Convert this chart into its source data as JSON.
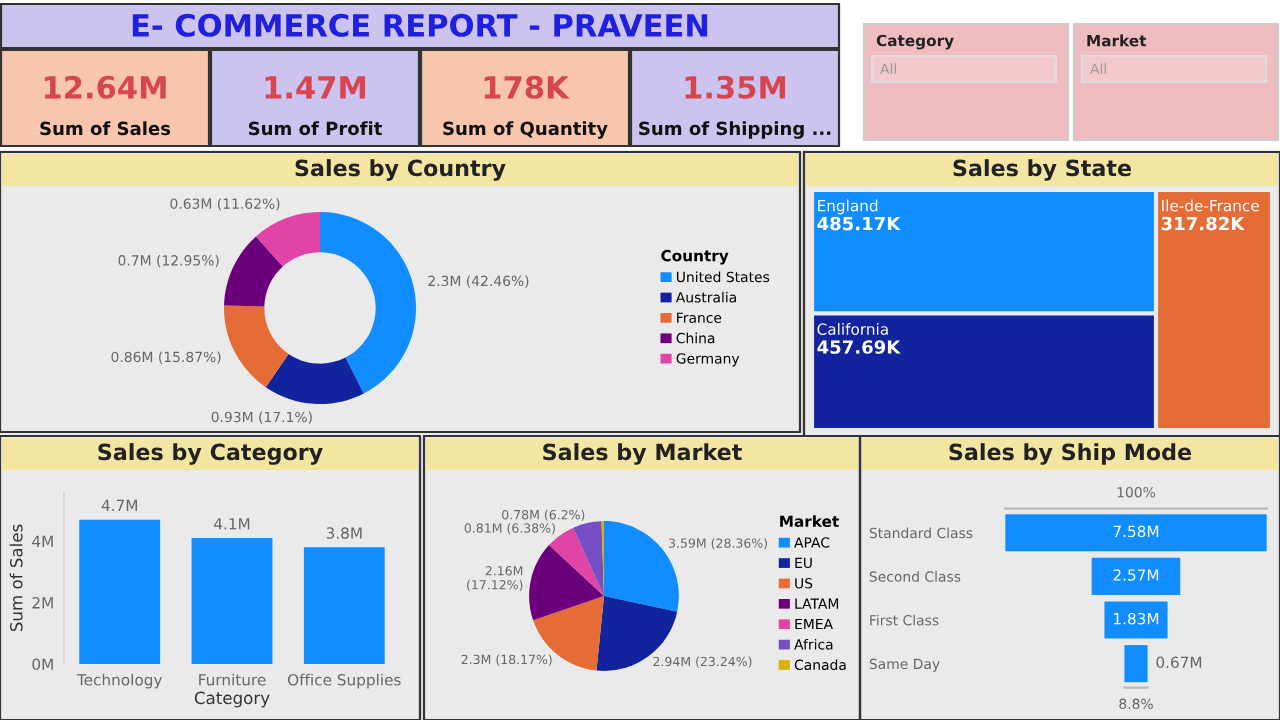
{
  "chart_data": [
    {
      "type": "other",
      "title": "E- COMMERCE REPORT - PRAVEEN",
      "annotations": [
        "12.64M",
        "Sum of Sales",
        "1.47M",
        "Sum of Profit",
        "178K",
        "Sum of Quantity",
        "1.35M",
        "Sum of Shipping ...",
        "Category",
        "All",
        "Market",
        "All"
      ]
    },
    {
      "type": "donut",
      "title": "Sales by Country",
      "legend_title": "Country",
      "legend": "right",
      "categories": [
        "United States",
        "Australia",
        "France",
        "China",
        "Germany"
      ],
      "values": [
        42.46,
        17.1,
        15.87,
        12.95,
        11.62
      ],
      "value_labels": [
        "2.3M (42.46%)",
        "0.93M (17.1%)",
        "0.86M (15.87%)",
        "0.7M (12.95%)",
        "0.63M (11.62%)"
      ],
      "colors": [
        "#118dff",
        "#12239e",
        "#e66c37",
        "#6b007b",
        "#e044a7"
      ]
    },
    {
      "type": "other",
      "title": "Sales by State",
      "categories": [
        "England",
        "California",
        "Ile-de-France"
      ],
      "values": [
        485.17,
        457.69,
        317.82
      ],
      "value_labels": [
        "485.17K",
        "457.69K",
        "317.82K"
      ],
      "colors": [
        "#118dff",
        "#12239e",
        "#e66c37"
      ]
    },
    {
      "type": "bar",
      "title": "Sales by Category",
      "xlabel": "Category",
      "ylabel": "Sum of Sales",
      "categories": [
        "Technology",
        "Furniture",
        "Office Supplies"
      ],
      "values": [
        4.7,
        4.1,
        3.8
      ],
      "value_labels": [
        "4.7M",
        "4.1M",
        "3.8M"
      ],
      "color": "#118dff",
      "ylim": [
        0,
        5.6
      ],
      "yticks": [
        {
          "value": 0,
          "label": "0M"
        },
        {
          "value": 2,
          "label": "2M"
        },
        {
          "value": 4,
          "label": "4M"
        }
      ],
      "grid": false
    },
    {
      "type": "pie",
      "title": "Sales by Market",
      "legend_title": "Market",
      "legend": "right",
      "categories": [
        "APAC",
        "EU",
        "US",
        "LATAM",
        "EMEA",
        "Africa",
        "Canada"
      ],
      "values": [
        28.36,
        23.24,
        18.17,
        17.12,
        6.38,
        6.2,
        0.53
      ],
      "value_labels": [
        "3.59M (28.36%)",
        "2.94M (23.24%)",
        "2.3M (18.17%)",
        "2.16M\n(17.12%)",
        "0.81M (6.38%)",
        "0.78M (6.2%)",
        null
      ],
      "colors": [
        "#118dff",
        "#12239e",
        "#e66c37",
        "#6b007b",
        "#e044a7",
        "#744ec2",
        "#d9b300"
      ]
    },
    {
      "type": "other",
      "title": "Sales by Ship Mode",
      "categories": [
        "Standard Class",
        "Second Class",
        "First Class",
        "Same Day"
      ],
      "values": [
        7.58,
        2.57,
        1.83,
        0.67
      ],
      "value_labels": [
        "7.58M",
        "2.57M",
        "1.83M",
        "0.67M"
      ],
      "color": "#118dff",
      "annotations": [
        "100%",
        "8.8%"
      ]
    }
  ]
}
